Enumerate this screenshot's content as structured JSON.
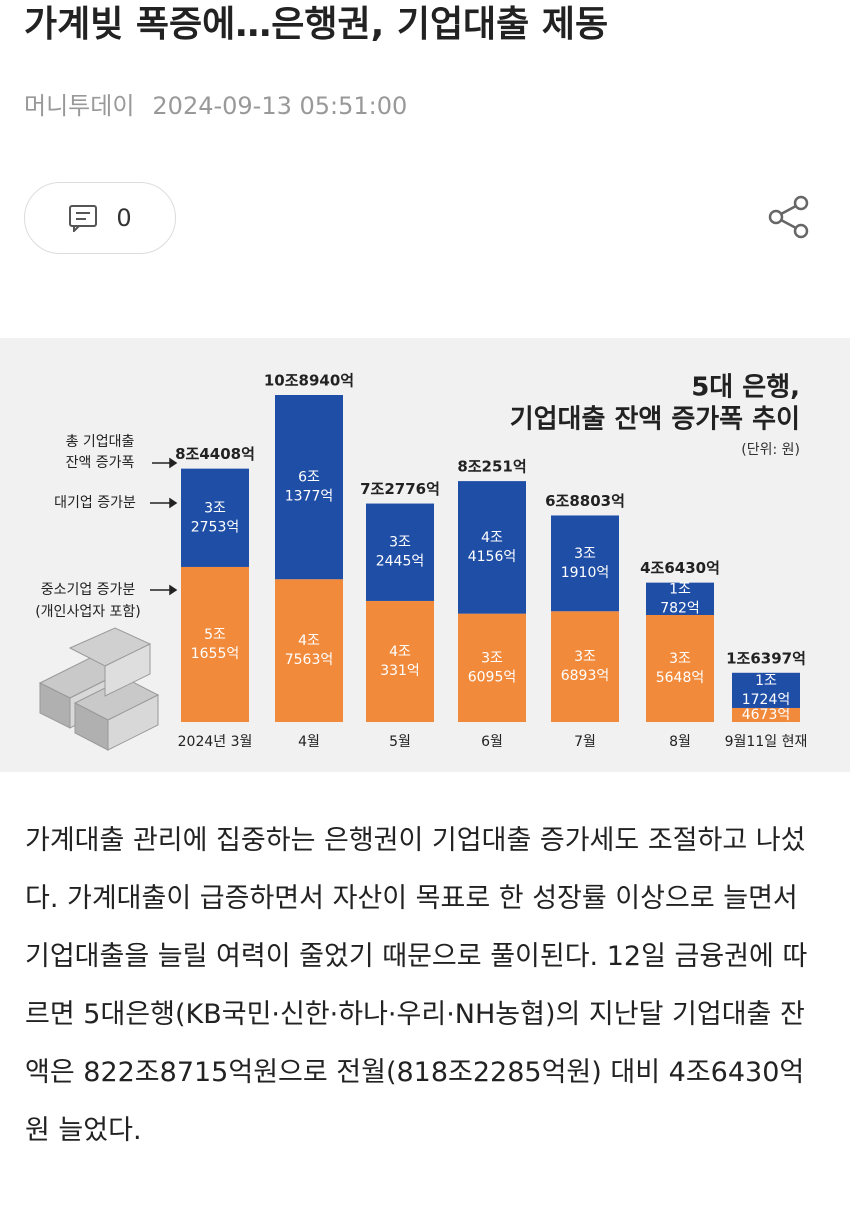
{
  "header": {
    "title": "가계빚 폭증에…은행권, 기업대출 제동",
    "source": "머니투데이",
    "date": "2024-09-13 05:51:00",
    "comment_count": 0
  },
  "figure": {
    "type": "bar",
    "stacked": true,
    "title_lines": [
      "5대 은행,",
      "기업대출 잔액 증가폭 추이"
    ],
    "unit": "(단위: 원)",
    "total_name_lines": [
      "총 기업대출",
      "잔액 증가폭"
    ],
    "categories": [
      "2024년 3월",
      "4월",
      "5월",
      "6월",
      "7월",
      "8월",
      "9월11일 현재"
    ],
    "series": [
      {
        "name": "중소기업 증가분",
        "note": "(개인사업자 포함)",
        "color": "#f28a3c",
        "values": [
          51655,
          47563,
          40331,
          36095,
          36893,
          35648,
          4673
        ],
        "value_labels": [
          [
            "5조",
            "1655억"
          ],
          [
            "4조",
            "7563억"
          ],
          [
            "4조",
            "331억"
          ],
          [
            "3조",
            "6095억"
          ],
          [
            "3조",
            "6893억"
          ],
          [
            "3조",
            "5648억"
          ],
          [
            "4673억"
          ]
        ]
      },
      {
        "name": "대기업 증가분",
        "color": "#1f4ea6",
        "values": [
          32753,
          61377,
          32445,
          44156,
          31910,
          10782,
          11724
        ],
        "value_labels": [
          [
            "3조",
            "2753억"
          ],
          [
            "6조",
            "1377억"
          ],
          [
            "3조",
            "2445억"
          ],
          [
            "4조",
            "4156억"
          ],
          [
            "3조",
            "1910억"
          ],
          [
            "1조",
            "782억"
          ],
          [
            "1조",
            "1724억"
          ]
        ]
      }
    ],
    "totals": [
      84408,
      108940,
      72776,
      80251,
      68803,
      46430,
      16397
    ],
    "total_labels": [
      "8조4408억",
      "10조8940억",
      "7조2776억",
      "8조251억",
      "6조8803억",
      "4조6430억",
      "1조6397억"
    ]
  },
  "body": "가계대출 관리에 집중하는 은행권이 기업대출 증가세도 조절하고 나섰다. 가계대출이 급증하면서 자산이 목표로 한 성장률 이상으로 늘면서 기업대출을 늘릴 여력이 줄었기 때문으로 풀이된다. 12일 금융권에 따르면 5대은행(KB국민·신한·하나·우리·NH농협)의 지난달 기업대출 잔액은 822조8715억원으로 전월(818조2285억원) 대비 4조6430억원 늘었다."
}
